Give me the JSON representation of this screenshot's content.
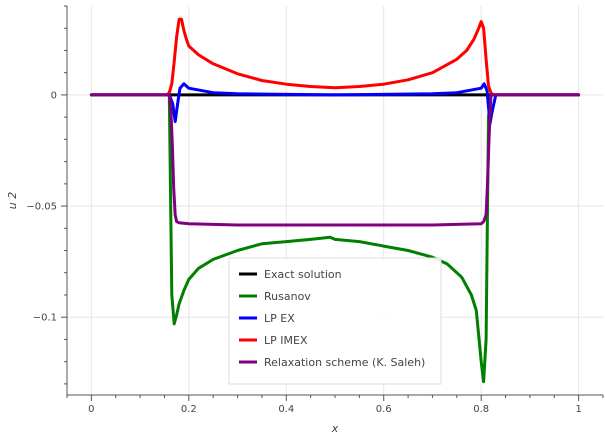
{
  "chart_data": {
    "type": "line",
    "xlabel": "x",
    "ylabel": "u 2",
    "xlim": [
      -0.05,
      1.05
    ],
    "ylim": [
      -0.135,
      0.04
    ],
    "x_ticks": [
      0,
      0.2,
      0.4,
      0.6,
      0.8,
      1
    ],
    "x_tick_labels": [
      "0",
      "0.2",
      "0.4",
      "0.6",
      "0.8",
      "1"
    ],
    "y_ticks": [
      0,
      -0.05,
      -0.1
    ],
    "y_tick_labels": [
      "0",
      "−0.05",
      "−0.1"
    ],
    "grid": true,
    "legend_position": "bottom-center",
    "series": [
      {
        "name": "Exact solution",
        "color": "#000000",
        "x": [
          0,
          1
        ],
        "y": [
          0,
          0
        ]
      },
      {
        "name": "Rusanov",
        "color": "#008000",
        "x": [
          0,
          0.16,
          0.165,
          0.17,
          0.175,
          0.18,
          0.19,
          0.2,
          0.22,
          0.25,
          0.3,
          0.35,
          0.4,
          0.45,
          0.49,
          0.5,
          0.55,
          0.6,
          0.65,
          0.7,
          0.73,
          0.76,
          0.78,
          0.79,
          0.8,
          0.805,
          0.81,
          0.815,
          0.82,
          1
        ],
        "y": [
          0,
          0,
          -0.09,
          -0.103,
          -0.099,
          -0.094,
          -0.088,
          -0.083,
          -0.078,
          -0.074,
          -0.07,
          -0.067,
          -0.066,
          -0.065,
          -0.064,
          -0.065,
          -0.066,
          -0.068,
          -0.07,
          -0.073,
          -0.076,
          -0.082,
          -0.09,
          -0.097,
          -0.12,
          -0.129,
          -0.11,
          -0.01,
          0,
          0
        ]
      },
      {
        "name": "LP EX",
        "color": "#0000ff",
        "x": [
          0,
          0.16,
          0.167,
          0.172,
          0.177,
          0.182,
          0.19,
          0.2,
          0.25,
          0.3,
          0.5,
          0.7,
          0.75,
          0.8,
          0.806,
          0.812,
          0.818,
          0.822,
          0.83,
          1
        ],
        "y": [
          0,
          0,
          -0.004,
          -0.012,
          -0.004,
          0.003,
          0.005,
          0.003,
          0.001,
          0.0005,
          0,
          0.0005,
          0.001,
          0.003,
          0.005,
          0.002,
          -0.013,
          -0.008,
          0,
          0
        ]
      },
      {
        "name": "LP IMEX",
        "color": "#ff0000",
        "x": [
          0,
          0.155,
          0.16,
          0.165,
          0.17,
          0.175,
          0.18,
          0.185,
          0.19,
          0.195,
          0.2,
          0.22,
          0.25,
          0.3,
          0.35,
          0.4,
          0.45,
          0.5,
          0.55,
          0.6,
          0.65,
          0.7,
          0.75,
          0.77,
          0.785,
          0.795,
          0.8,
          0.805,
          0.81,
          0.815,
          0.82,
          0.825,
          1
        ],
        "y": [
          0,
          0,
          0.001,
          0.005,
          0.015,
          0.026,
          0.034,
          0.034,
          0.029,
          0.025,
          0.022,
          0.018,
          0.014,
          0.0095,
          0.0065,
          0.0048,
          0.0038,
          0.0032,
          0.0038,
          0.0048,
          0.0068,
          0.01,
          0.016,
          0.02,
          0.025,
          0.03,
          0.033,
          0.03,
          0.016,
          0.004,
          0.001,
          0,
          0
        ]
      },
      {
        "name": "Relaxation scheme (K. Saleh)",
        "color": "#800080",
        "x": [
          0,
          0.16,
          0.163,
          0.166,
          0.169,
          0.172,
          0.175,
          0.18,
          0.2,
          0.3,
          0.5,
          0.7,
          0.8,
          0.805,
          0.81,
          0.813,
          0.816,
          0.819,
          0.82,
          1
        ],
        "y": [
          0,
          0,
          -0.006,
          -0.022,
          -0.042,
          -0.054,
          -0.057,
          -0.0575,
          -0.058,
          -0.0585,
          -0.0585,
          -0.0585,
          -0.058,
          -0.057,
          -0.054,
          -0.04,
          -0.02,
          -0.005,
          0,
          0
        ]
      }
    ]
  }
}
